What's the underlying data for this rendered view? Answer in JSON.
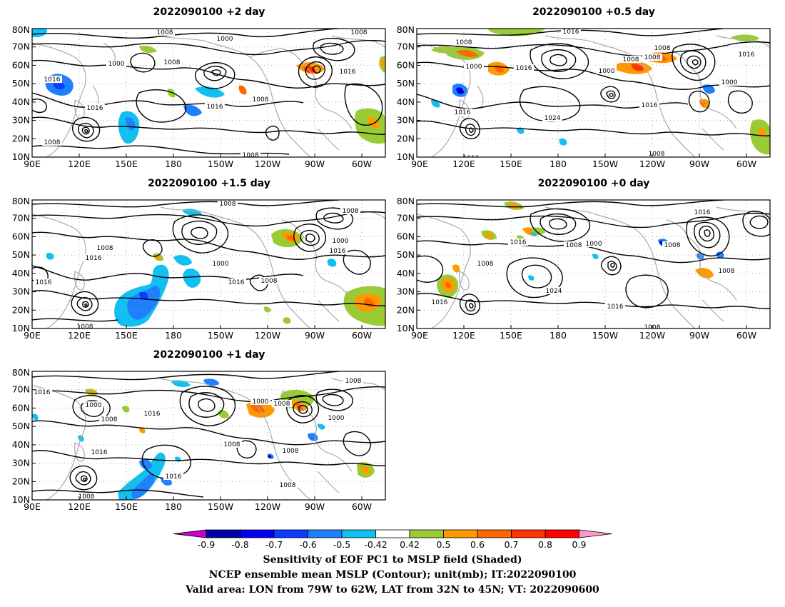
{
  "panels": [
    {
      "id": "p2d",
      "title": "2022090100 +2 day"
    },
    {
      "id": "p05d",
      "title": "2022090100 +0.5 day"
    },
    {
      "id": "p15d",
      "title": "2022090100 +1.5 day"
    },
    {
      "id": "p0d",
      "title": "2022090100 +0 day"
    },
    {
      "id": "p1d",
      "title": "2022090100 +1 day"
    }
  ],
  "axes": {
    "x_ticks": [
      "90E",
      "120E",
      "150E",
      "180",
      "150W",
      "120W",
      "90W",
      "60W"
    ],
    "y_ticks": [
      "10N",
      "20N",
      "30N",
      "40N",
      "50N",
      "60N",
      "70N",
      "80N"
    ]
  },
  "contour_labels": {
    "p2d": [
      "1008",
      "1000",
      "1008",
      "1008",
      "1016",
      "1000",
      "1016",
      "1016",
      "1008",
      "1008",
      "1016",
      "1008"
    ],
    "p05d": [
      "1016",
      "1008",
      "1000",
      "1016",
      "1008",
      "1008",
      "1000",
      "1016",
      "1016",
      "1024",
      "1000",
      "1016",
      "1008",
      "1016",
      "1008"
    ],
    "p15d": [
      "1008",
      "1008",
      "1008",
      "1016",
      "1000",
      "1016",
      "1000",
      "1016",
      "1008",
      "1016",
      "1008"
    ],
    "p0d": [
      "1016",
      "1008",
      "1000",
      "1016",
      "1008",
      "1008",
      "1008",
      "1024",
      "1016",
      "1016",
      "1016",
      "1008"
    ],
    "p1d": [
      "1016",
      "1000",
      "1016",
      "1008",
      "1000",
      "1008",
      "1008",
      "1008",
      "1000",
      "1016",
      "1008",
      "1016",
      "1008",
      "1008"
    ]
  },
  "colorbar": {
    "labels": [
      "-0.9",
      "-0.8",
      "-0.7",
      "-0.6",
      "-0.5",
      "-0.42",
      "0.42",
      "0.5",
      "0.6",
      "0.7",
      "0.8",
      "0.9"
    ],
    "colors": [
      "#cc00cc",
      "#0000aa",
      "#0000ee",
      "#0a3dff",
      "#1f80ff",
      "#10c0f0",
      "#ffffff",
      "#99cc33",
      "#ff9900",
      "#ff6600",
      "#ff3300",
      "#ff0000",
      "#ff99cc"
    ]
  },
  "caption": {
    "line1": "Sensitivity of EOF PC1 to MSLP field (Shaded)",
    "line2": "NCEP ensemble mean MSLP (Contour); unit(mb); IT:2022090100",
    "line3": "Valid area: LON from 79W to 62W, LAT from 32N to 45N; VT: 2022090600"
  }
}
